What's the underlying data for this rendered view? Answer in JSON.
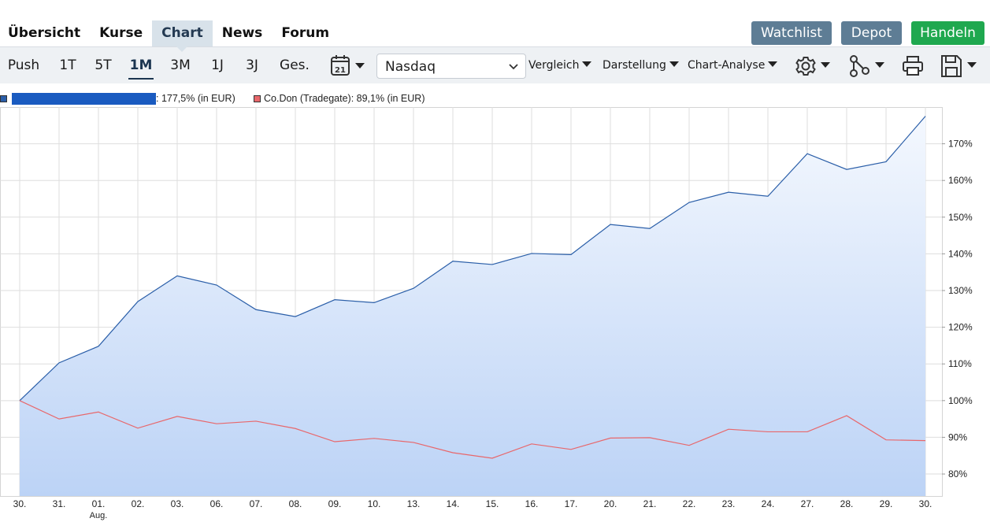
{
  "nav": {
    "tabs": [
      {
        "label": "Übersicht"
      },
      {
        "label": "Kurse"
      },
      {
        "label": "Chart"
      },
      {
        "label": "News"
      },
      {
        "label": "Forum"
      }
    ],
    "active_tab": "Chart",
    "buttons": {
      "watchlist": "Watchlist",
      "depot": "Depot",
      "handeln": "Handeln"
    }
  },
  "toolbar": {
    "ranges": [
      "Push",
      "1T",
      "5T",
      "1M",
      "3M",
      "1J",
      "3J",
      "Ges."
    ],
    "active_range": "1M",
    "calendar_day": "21",
    "exchange_select": "Nasdaq",
    "vergleich": "Vergleich",
    "darstellung": "Darstellung",
    "chart_analyse": "Chart-Analyse",
    "icons": [
      "calendar-icon",
      "chevron-down-icon",
      "gear-icon",
      "share-network-icon",
      "printer-icon",
      "save-icon"
    ]
  },
  "legend": {
    "series1_label": ": 177,5% (in EUR)",
    "series2_label": "Co.Don (Tradegate): 89,1% (in EUR)"
  },
  "colors": {
    "series1": "#2a5ea8",
    "series2": "#e8676b",
    "area_top": "#f4f8fe",
    "area_bottom": "#bcd3f6"
  },
  "chart_data": {
    "type": "area",
    "x": [
      "30.",
      "31.",
      "01.",
      "02.",
      "03.",
      "06.",
      "07.",
      "08.",
      "09.",
      "10.",
      "13.",
      "14.",
      "15.",
      "16.",
      "17.",
      "20.",
      "21.",
      "22.",
      "23.",
      "24.",
      "27.",
      "28.",
      "29.",
      "30."
    ],
    "x_sublabels": {
      "2": "Aug."
    },
    "y_tick_labels": [
      "80%",
      "90%",
      "100%",
      "110%",
      "120%",
      "130%",
      "140%",
      "150%",
      "160%",
      "170%"
    ],
    "y_ticks": [
      80,
      90,
      100,
      110,
      120,
      130,
      140,
      150,
      160,
      170
    ],
    "ylim": [
      74,
      180
    ],
    "grid": true,
    "series": [
      {
        "values": [
          100,
          110.3,
          114.8,
          127,
          134,
          131.5,
          124.8,
          122.9,
          127.5,
          126.7,
          130.6,
          138,
          137.1,
          140.1,
          139.8,
          148,
          146.9,
          154,
          156.8,
          155.7,
          167.3,
          163,
          165.1,
          177.5
        ]
      },
      {
        "name": "Co.Don (Tradegate)",
        "values": [
          100,
          95,
          96.9,
          92.5,
          95.7,
          93.7,
          94.4,
          92.4,
          88.8,
          89.7,
          88.6,
          85.8,
          84.3,
          88.2,
          86.7,
          89.8,
          89.9,
          87.8,
          92.2,
          91.5,
          91.5,
          95.9,
          89.3,
          89.1
        ]
      }
    ]
  }
}
